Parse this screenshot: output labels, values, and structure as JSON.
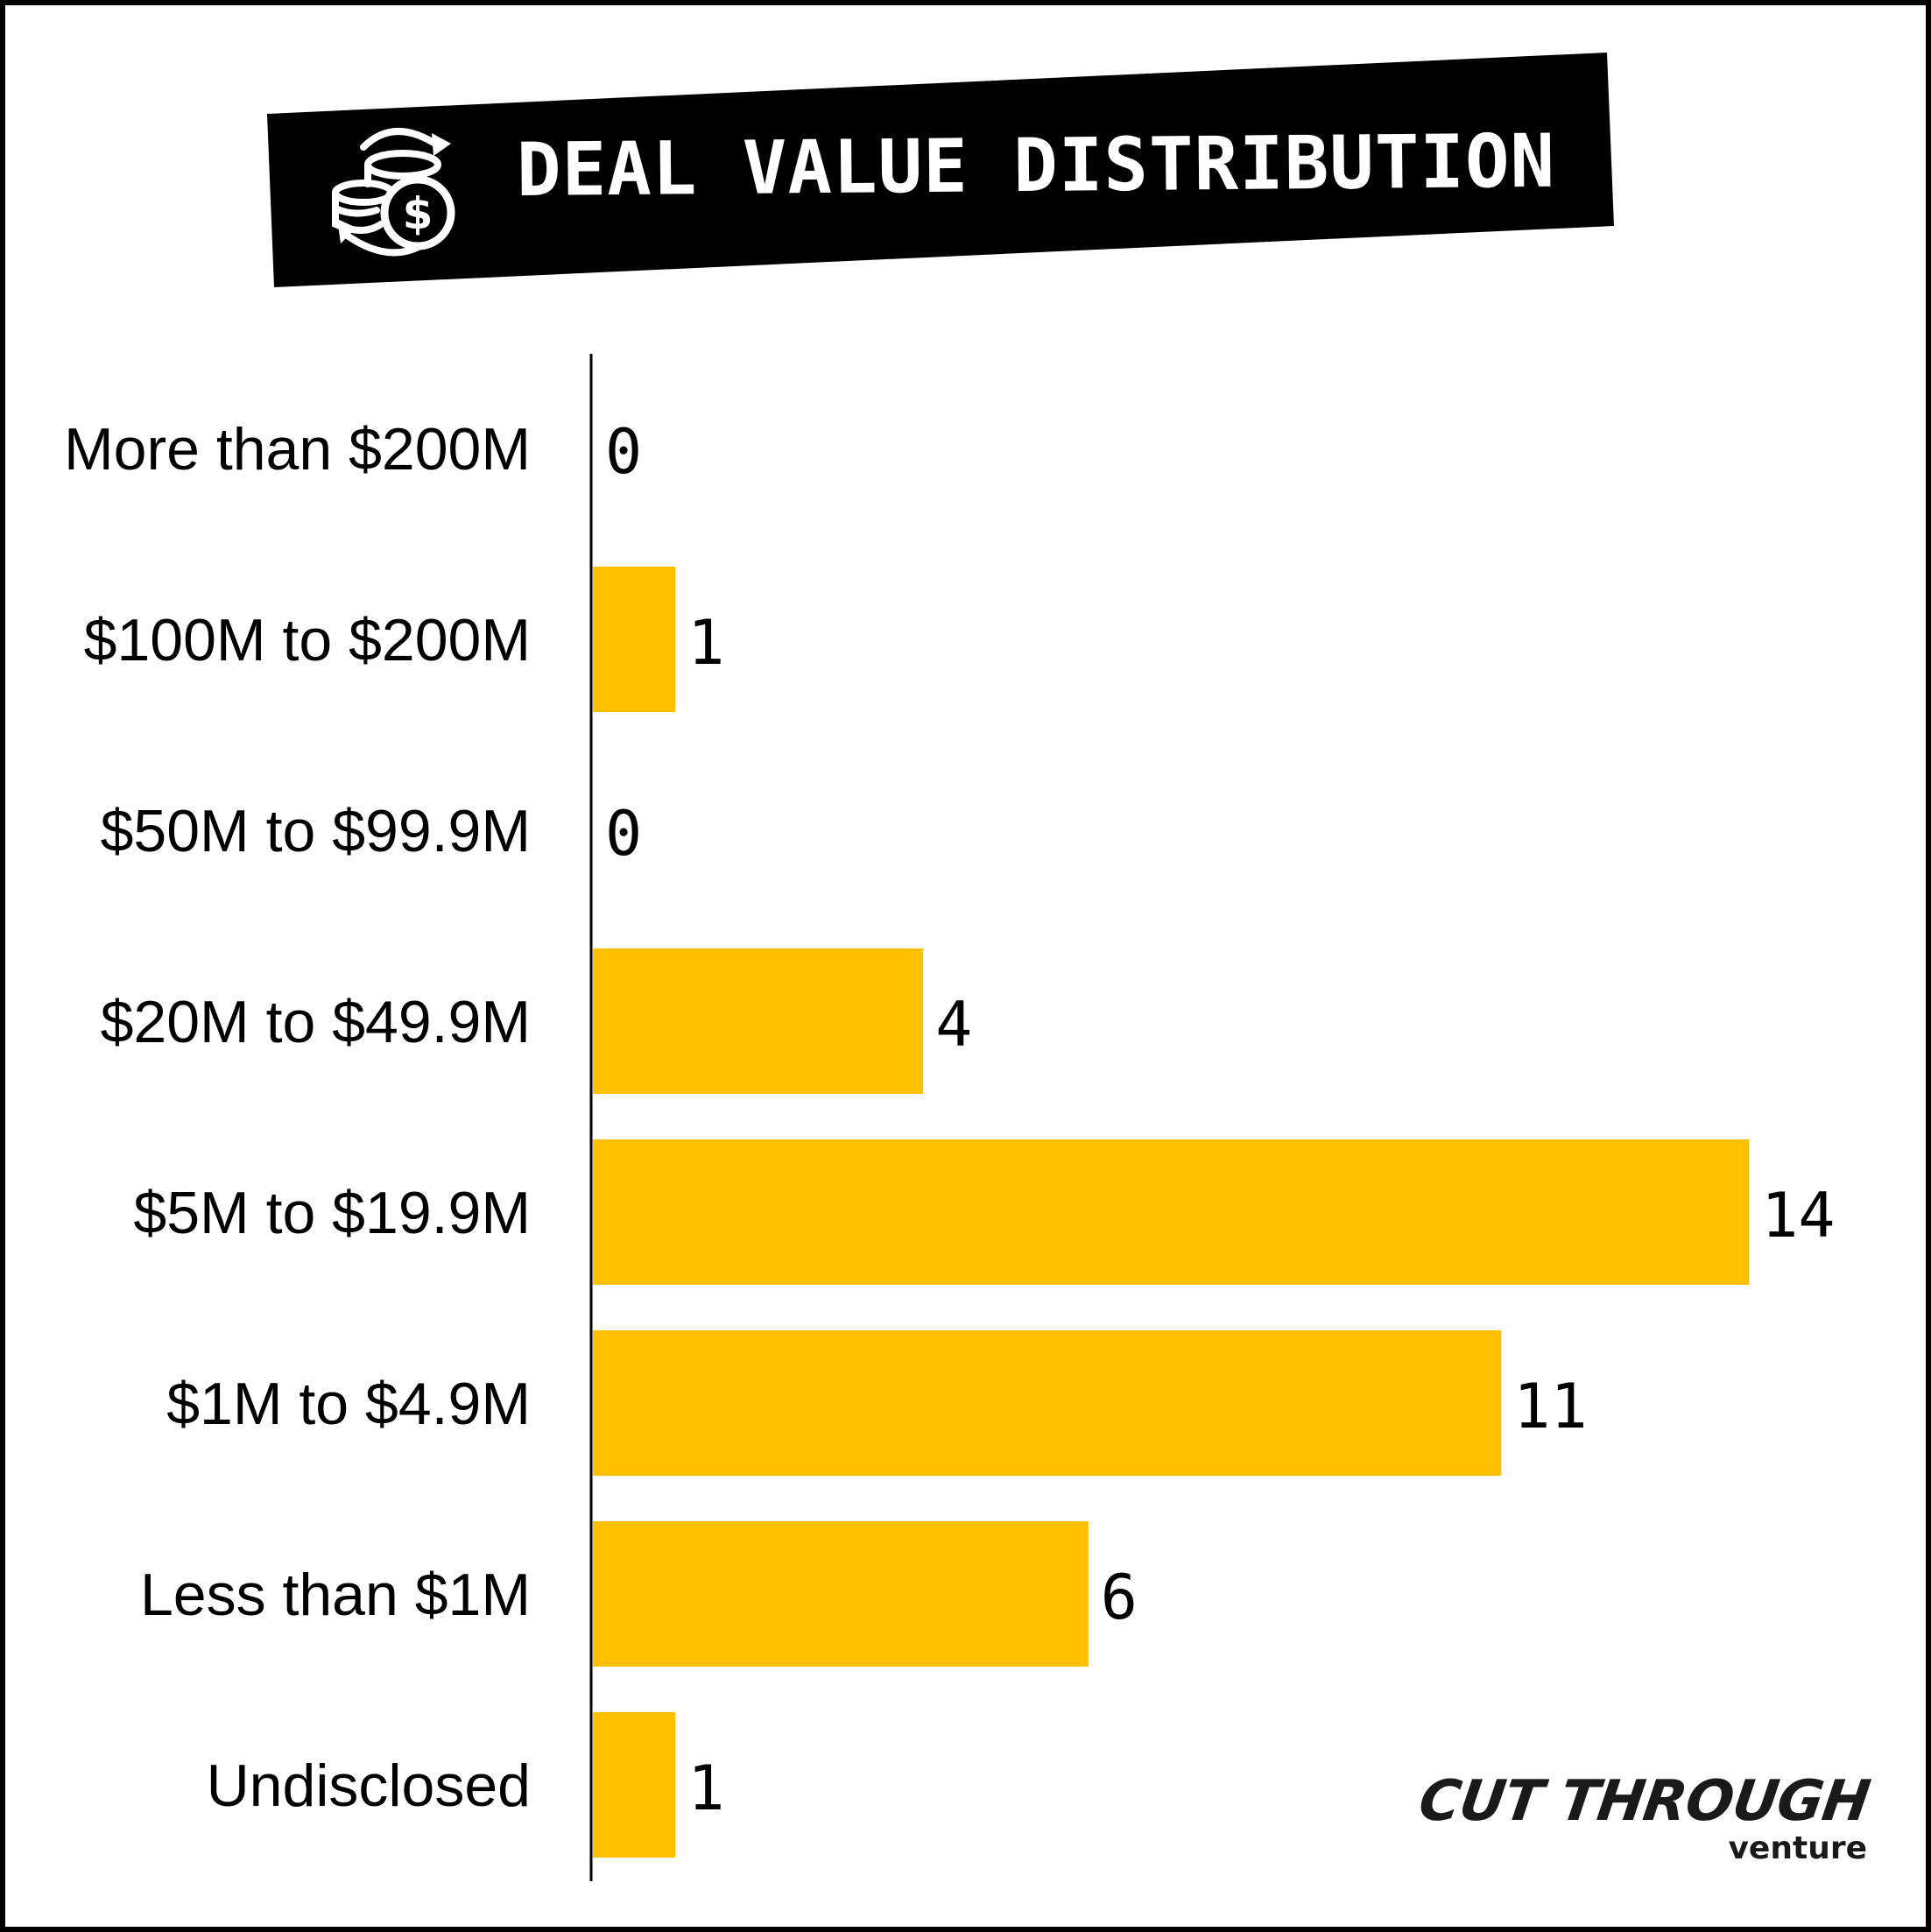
{
  "header": {
    "title": "DEAL VALUE DISTRIBUTION",
    "icon": "coins-dollar-exchange-icon",
    "banner_color": "#000000",
    "title_color": "#ffffff"
  },
  "chart_data": {
    "type": "bar",
    "orientation": "horizontal",
    "title": "DEAL VALUE DISTRIBUTION",
    "categories": [
      "More than $200M",
      "$100M to $200M",
      "$50M to $99.9M",
      "$20M to $49.9M",
      "$5M to $19.9M",
      "$1M to $4.9M",
      "Less than $1M",
      "Undisclosed"
    ],
    "values": [
      0,
      1,
      0,
      4,
      14,
      11,
      6,
      1
    ],
    "data_labels": [
      "0",
      "1",
      "0",
      "4",
      "14",
      "11",
      "6",
      "1"
    ],
    "xlim": [
      0,
      14
    ],
    "grid": false,
    "legend": "none",
    "bar_color": "#FFC000"
  },
  "logo": {
    "main": "CUT THROUGH",
    "sub": "venture"
  }
}
